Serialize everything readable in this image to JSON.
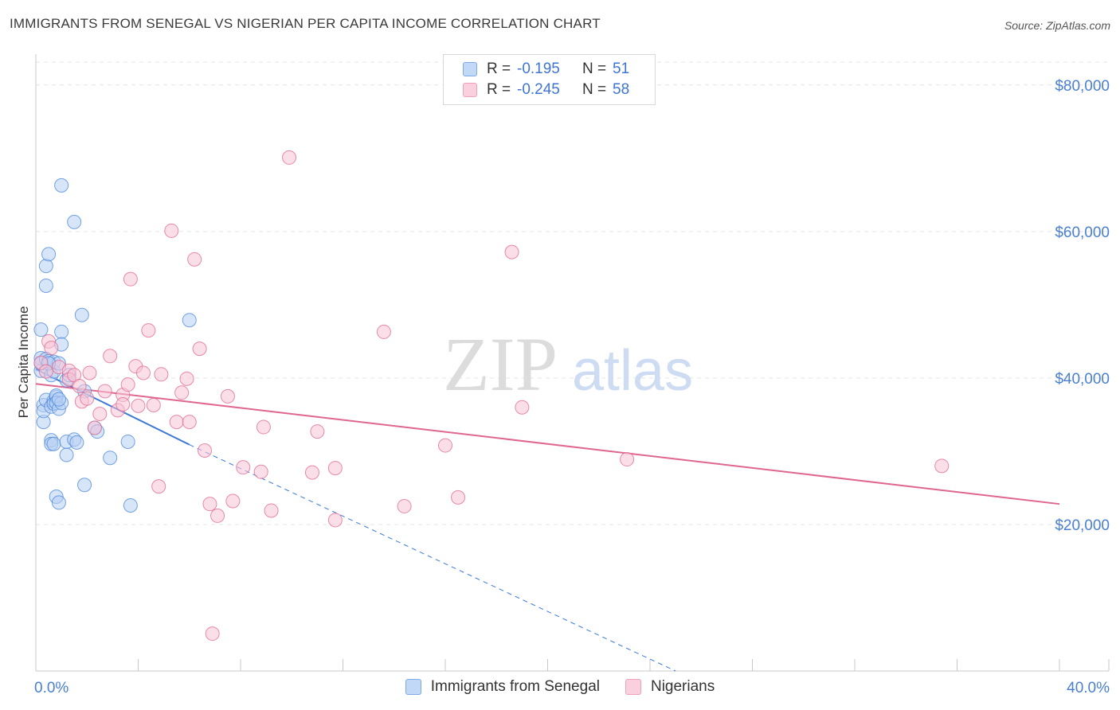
{
  "title": "IMMIGRANTS FROM SENEGAL VS NIGERIAN PER CAPITA INCOME CORRELATION CHART",
  "source": "Source: ZipAtlas.com",
  "watermark": {
    "zip": "ZIP",
    "atlas": "atlas"
  },
  "legend": {
    "rows": [
      {
        "r_label": "R =",
        "r_value": "-0.195",
        "n_label": "N =",
        "n_value": "51",
        "color": "#7eaaea"
      },
      {
        "r_label": "R =",
        "r_value": "-0.245",
        "n_label": "N =",
        "n_value": "58",
        "color": "#f2a0ba"
      }
    ]
  },
  "bottom_legend": [
    {
      "label": "Immigrants from Senegal",
      "color": "#7eaaea"
    },
    {
      "label": "Nigerians",
      "color": "#f2a0ba"
    }
  ],
  "chart_data": {
    "type": "scatter",
    "title": "IMMIGRANTS FROM SENEGAL VS NIGERIAN PER CAPITA INCOME CORRELATION CHART",
    "xlabel": "",
    "ylabel": "Per Capita Income",
    "xlim": [
      0,
      40
    ],
    "ylim": [
      0,
      84000
    ],
    "x_tick_labels": [
      "0.0%",
      "40.0%"
    ],
    "y_ticks": [
      20000,
      40000,
      60000,
      80000
    ],
    "y_tick_labels": [
      "$20,000",
      "$40,000",
      "$60,000",
      "$80,000"
    ],
    "grid": true,
    "series": [
      {
        "name": "Immigrants from Senegal",
        "color": "#4a86d8",
        "fill": "#b7d0f4",
        "trend": {
          "x0": 0,
          "y0": 41200,
          "x1": 6,
          "y1": 30900,
          "dash_to_x": 25,
          "dash_to_y": 0
        },
        "points": [
          [
            0.2,
            46600
          ],
          [
            0.2,
            41000
          ],
          [
            0.2,
            42700
          ],
          [
            0.2,
            42000
          ],
          [
            0.3,
            36300
          ],
          [
            0.3,
            34000
          ],
          [
            0.3,
            35500
          ],
          [
            0.4,
            55300
          ],
          [
            0.4,
            52600
          ],
          [
            0.4,
            37000
          ],
          [
            0.4,
            42600
          ],
          [
            0.5,
            56900
          ],
          [
            0.5,
            42300
          ],
          [
            0.6,
            40400
          ],
          [
            0.6,
            36100
          ],
          [
            0.6,
            31500
          ],
          [
            0.6,
            31000
          ],
          [
            0.7,
            40900
          ],
          [
            0.7,
            42200
          ],
          [
            0.7,
            36900
          ],
          [
            0.7,
            36500
          ],
          [
            0.7,
            31000
          ],
          [
            0.8,
            37400
          ],
          [
            0.8,
            37600
          ],
          [
            0.8,
            36600
          ],
          [
            0.8,
            23800
          ],
          [
            0.9,
            42000
          ],
          [
            0.9,
            35800
          ],
          [
            0.9,
            23000
          ],
          [
            1.0,
            66300
          ],
          [
            1.0,
            46300
          ],
          [
            1.0,
            44600
          ],
          [
            1.0,
            36600
          ],
          [
            1.2,
            39700
          ],
          [
            1.2,
            31300
          ],
          [
            1.2,
            29500
          ],
          [
            1.3,
            40400
          ],
          [
            1.5,
            61300
          ],
          [
            1.5,
            31600
          ],
          [
            1.6,
            31200
          ],
          [
            1.8,
            48600
          ],
          [
            1.9,
            38200
          ],
          [
            1.9,
            25400
          ],
          [
            2.3,
            33200
          ],
          [
            2.4,
            32700
          ],
          [
            2.9,
            29100
          ],
          [
            3.6,
            31300
          ],
          [
            3.7,
            22600
          ],
          [
            6.0,
            47900
          ],
          [
            0.5,
            42000
          ],
          [
            0.9,
            37100
          ]
        ]
      },
      {
        "name": "Nigerians",
        "color": "#e0668f",
        "fill": "#f8c5d5",
        "trend": {
          "x0": 0,
          "y0": 39200,
          "x1": 40,
          "y1": 22800
        },
        "points": [
          [
            0.2,
            42100
          ],
          [
            0.4,
            40900
          ],
          [
            0.5,
            45000
          ],
          [
            0.6,
            44100
          ],
          [
            0.9,
            41500
          ],
          [
            1.3,
            41000
          ],
          [
            1.3,
            39800
          ],
          [
            1.5,
            40400
          ],
          [
            1.7,
            38900
          ],
          [
            1.8,
            36800
          ],
          [
            2.0,
            37200
          ],
          [
            2.1,
            40700
          ],
          [
            2.3,
            33200
          ],
          [
            2.5,
            35100
          ],
          [
            2.7,
            38200
          ],
          [
            2.9,
            43000
          ],
          [
            3.2,
            35600
          ],
          [
            3.4,
            37700
          ],
          [
            3.4,
            36400
          ],
          [
            3.6,
            39100
          ],
          [
            3.7,
            53500
          ],
          [
            3.9,
            41600
          ],
          [
            4.0,
            36200
          ],
          [
            4.2,
            40700
          ],
          [
            4.4,
            46500
          ],
          [
            4.6,
            36300
          ],
          [
            4.8,
            25200
          ],
          [
            4.9,
            40500
          ],
          [
            5.3,
            60100
          ],
          [
            5.5,
            34000
          ],
          [
            5.7,
            38000
          ],
          [
            5.9,
            39900
          ],
          [
            6.0,
            34000
          ],
          [
            6.2,
            56200
          ],
          [
            6.4,
            44000
          ],
          [
            6.6,
            30100
          ],
          [
            6.8,
            22800
          ],
          [
            6.9,
            5100
          ],
          [
            7.1,
            21200
          ],
          [
            7.5,
            37500
          ],
          [
            7.7,
            23200
          ],
          [
            8.1,
            27800
          ],
          [
            8.8,
            27200
          ],
          [
            8.9,
            33300
          ],
          [
            9.2,
            21900
          ],
          [
            9.9,
            70100
          ],
          [
            10.8,
            27100
          ],
          [
            11.0,
            32700
          ],
          [
            11.7,
            27700
          ],
          [
            11.7,
            20600
          ],
          [
            13.6,
            46300
          ],
          [
            14.4,
            22500
          ],
          [
            16.0,
            30800
          ],
          [
            16.5,
            23700
          ],
          [
            18.6,
            57200
          ],
          [
            19.0,
            36000
          ],
          [
            23.1,
            28900
          ],
          [
            35.4,
            28000
          ]
        ]
      }
    ]
  }
}
